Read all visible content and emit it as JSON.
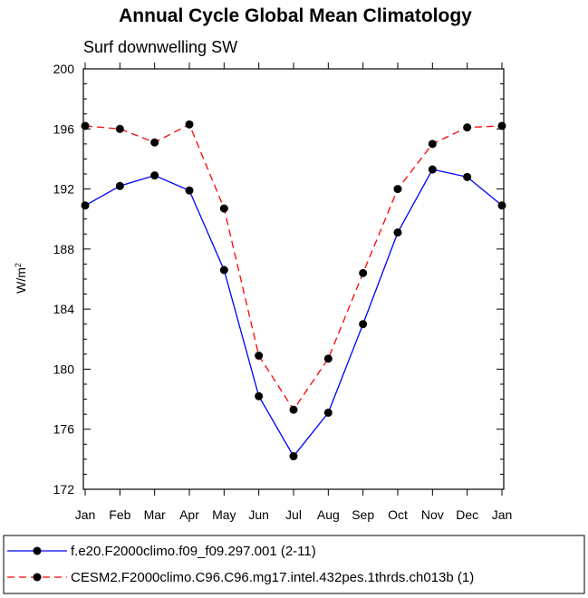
{
  "chart_data": {
    "type": "line",
    "title": "Annual Cycle Global Mean Climatology",
    "subtitle": "Surf downwelling SW",
    "ylabel": "W/m",
    "ylabel_sup": "2",
    "xlabel": "",
    "categories": [
      "Jan",
      "Feb",
      "Mar",
      "Apr",
      "May",
      "Jun",
      "Jul",
      "Aug",
      "Sep",
      "Oct",
      "Nov",
      "Dec",
      "Jan"
    ],
    "ylim": [
      172,
      200
    ],
    "yticks": [
      172,
      176,
      180,
      184,
      188,
      192,
      196,
      200
    ],
    "ytick_labels": [
      "172",
      "176",
      "180",
      "184",
      "188",
      "192",
      "196",
      "200"
    ],
    "series": [
      {
        "name": "f.e20.F2000climo.f09_f09.297.001 (2-11)",
        "color": "#0000ff",
        "dash": "solid",
        "values": [
          190.9,
          192.2,
          192.9,
          191.9,
          186.6,
          178.2,
          174.2,
          177.1,
          183.0,
          189.1,
          193.3,
          192.8,
          190.9
        ]
      },
      {
        "name": "CESM2.F2000climo.C96.C96.mg17.intel.432pes.1thrds.ch013b (1)",
        "color": "#ff0000",
        "dash": "dashed",
        "values": [
          196.2,
          196.0,
          195.1,
          196.3,
          190.7,
          180.9,
          177.3,
          180.7,
          186.4,
          192.0,
          195.0,
          196.1,
          196.2
        ]
      }
    ]
  }
}
